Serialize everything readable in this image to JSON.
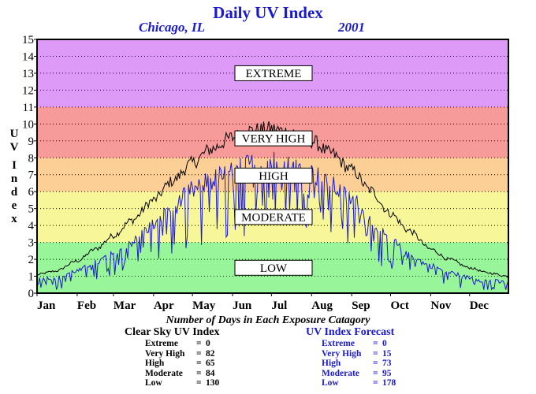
{
  "header": {
    "title": "Daily UV Index",
    "location": "Chicago, IL",
    "year": "2001"
  },
  "axis": {
    "ylabel_letters": [
      "U",
      "V",
      "I",
      "n",
      "d",
      "e",
      "x"
    ]
  },
  "chart_data": {
    "type": "line",
    "title": "Daily UV Index",
    "ylabel": "UV Index",
    "ylim": [
      0,
      15
    ],
    "yticks": [
      "0",
      "1",
      "2",
      "3",
      "4",
      "5",
      "6",
      "7",
      "8",
      "9",
      "10",
      "11",
      "12",
      "13",
      "14",
      "15"
    ],
    "months": [
      "Jan",
      "Feb",
      "Mar",
      "Apr",
      "May",
      "Jun",
      "Jul",
      "Aug",
      "Sep",
      "Oct",
      "Nov",
      "Dec"
    ],
    "xlim": [
      1,
      365
    ],
    "grid": true,
    "bands": [
      {
        "label": "LOW",
        "from": 0,
        "to": 3,
        "color": "#99f599"
      },
      {
        "label": "MODERATE",
        "from": 3,
        "to": 6,
        "color": "#f7f79a"
      },
      {
        "label": "HIGH",
        "from": 6,
        "to": 8,
        "color": "#fbcf96"
      },
      {
        "label": "VERY HIGH",
        "from": 8,
        "to": 11,
        "color": "#f79a9a"
      },
      {
        "label": "EXTREME",
        "from": 11,
        "to": 15,
        "color": "#dd9af7"
      }
    ],
    "series": [
      {
        "name": "Clear Sky UV Index",
        "color": "#000000",
        "key_days": [
          1,
          15,
          32,
          46,
          60,
          74,
          91,
          105,
          121,
          135,
          152,
          166,
          182,
          196,
          213,
          227,
          244,
          258,
          274,
          288,
          305,
          319,
          335,
          349,
          365
        ],
        "key_values": [
          1.1,
          1.3,
          1.9,
          2.6,
          3.4,
          4.3,
          5.5,
          6.6,
          7.7,
          8.5,
          9.2,
          9.6,
          9.7,
          9.5,
          9.0,
          8.3,
          7.3,
          6.1,
          4.7,
          3.7,
          2.6,
          2.0,
          1.5,
          1.2,
          1.0
        ]
      },
      {
        "name": "UV Index Forecast",
        "color": "#1a1ad0",
        "key_days": [
          1,
          15,
          32,
          46,
          60,
          74,
          91,
          105,
          121,
          135,
          152,
          166,
          182,
          196,
          213,
          227,
          244,
          258,
          274,
          288,
          305,
          319,
          335,
          349,
          365
        ],
        "key_values": [
          0.8,
          0.9,
          1.3,
          1.8,
          2.3,
          3.0,
          4.0,
          5.0,
          6.0,
          6.6,
          7.1,
          7.5,
          7.7,
          7.4,
          7.0,
          6.3,
          5.5,
          4.3,
          3.1,
          2.2,
          1.6,
          1.2,
          0.9,
          0.7,
          0.6
        ]
      }
    ]
  },
  "summary": {
    "title": "Number of Days in Each Exposure Catagory",
    "clear_sky": {
      "header": "Clear Sky UV Index",
      "rows": [
        {
          "label": "Extreme",
          "eq": "=",
          "value": "0"
        },
        {
          "label": "Very High",
          "eq": "=",
          "value": "82"
        },
        {
          "label": "High",
          "eq": "=",
          "value": "65"
        },
        {
          "label": "Moderate",
          "eq": "=",
          "value": "84"
        },
        {
          "label": "Low",
          "eq": "=",
          "value": "130"
        }
      ]
    },
    "forecast": {
      "header": "UV Index Forecast",
      "rows": [
        {
          "label": "Extreme",
          "eq": "=",
          "value": "0"
        },
        {
          "label": "Very High",
          "eq": "=",
          "value": "15"
        },
        {
          "label": "High",
          "eq": "=",
          "value": "73"
        },
        {
          "label": "Moderate",
          "eq": "=",
          "value": "95"
        },
        {
          "label": "Low",
          "eq": "=",
          "value": "178"
        }
      ]
    }
  }
}
